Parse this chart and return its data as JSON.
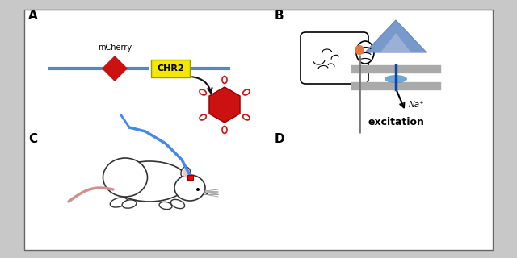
{
  "bg_color": "#c8c8c8",
  "panel_bg": "#ffffff",
  "label_fontsize": 11,
  "chr2_box_color": "#f5e800",
  "dna_color": "#5588bb",
  "diamond_color": "#cc1111",
  "virus_color": "#cc1111",
  "arrow_color": "#111111",
  "triangle_color": "#7799cc",
  "triangle_light": "#aabbd8",
  "channel_color": "#5599cc",
  "membrane_color": "#aaaaaa",
  "excitation_text": "excitation",
  "na_text": "Na⁺",
  "mcherry_text": "mCherry",
  "chr2_text": "CHR2",
  "electrode_color": "#777777",
  "orange_color": "#e07840",
  "tail_color": "#d09090",
  "fiber_color": "#4488ee"
}
